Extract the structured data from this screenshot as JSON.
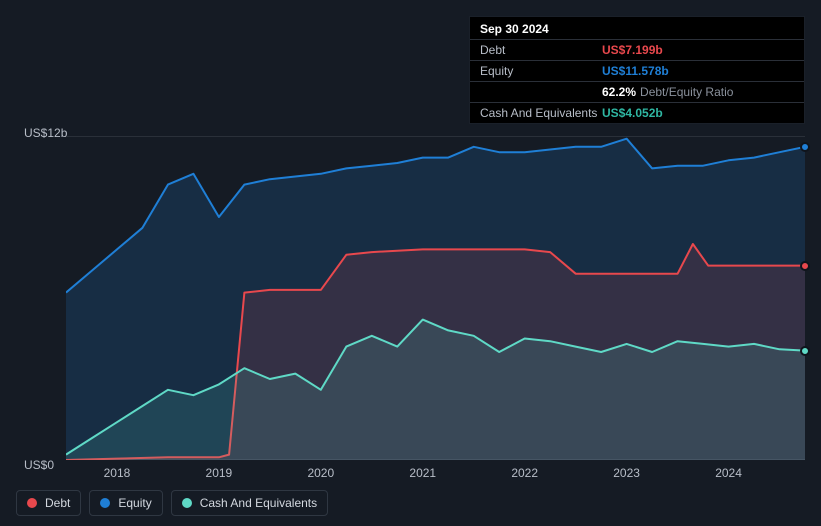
{
  "tooltip": {
    "date": "Sep 30 2024",
    "debt_label": "Debt",
    "debt_value": "US$7.199b",
    "equity_label": "Equity",
    "equity_value": "US$11.578b",
    "ratio_pct": "62.2%",
    "ratio_text": "Debt/Equity Ratio",
    "cash_label": "Cash And Equivalents",
    "cash_value": "US$4.052b"
  },
  "chart": {
    "type": "area",
    "background": "#151b24",
    "plot_bg": "#151b24",
    "grid_color": "#2a3039",
    "y_axis": {
      "min": 0,
      "max": 12,
      "tick_labels": [
        "US$0",
        "US$12b"
      ],
      "label_color": "#b8bec8",
      "label_fontsize": 12
    },
    "x_axis": {
      "min": 2017.5,
      "max": 2024.75,
      "tick_positions": [
        2018,
        2019,
        2020,
        2021,
        2022,
        2023,
        2024
      ],
      "tick_labels": [
        "2018",
        "2019",
        "2020",
        "2021",
        "2022",
        "2023",
        "2024"
      ],
      "label_color": "#b8bec8",
      "label_fontsize": 12
    },
    "series": {
      "equity": {
        "label": "Equity",
        "stroke": "#1f7fd6",
        "fill": "#1f7fd6",
        "fill_opacity": 0.18,
        "stroke_width": 2,
        "x": [
          2017.5,
          2017.75,
          2018.0,
          2018.25,
          2018.5,
          2018.75,
          2019.0,
          2019.25,
          2019.5,
          2019.75,
          2020.0,
          2020.25,
          2020.5,
          2020.75,
          2021.0,
          2021.25,
          2021.5,
          2021.75,
          2022.0,
          2022.25,
          2022.5,
          2022.75,
          2023.0,
          2023.25,
          2023.5,
          2023.75,
          2024.0,
          2024.25,
          2024.5,
          2024.75
        ],
        "y": [
          6.2,
          7.0,
          7.8,
          8.6,
          10.2,
          10.6,
          9.0,
          10.2,
          10.4,
          10.5,
          10.6,
          10.8,
          10.9,
          11.0,
          11.2,
          11.2,
          11.6,
          11.4,
          11.4,
          11.5,
          11.6,
          11.6,
          11.9,
          10.8,
          10.9,
          10.9,
          11.1,
          11.2,
          11.4,
          11.6
        ]
      },
      "debt": {
        "label": "Debt",
        "stroke": "#e8484d",
        "fill": "#e8484d",
        "fill_opacity": 0.14,
        "stroke_width": 2,
        "x": [
          2017.5,
          2018.0,
          2018.5,
          2018.75,
          2019.0,
          2019.1,
          2019.25,
          2019.5,
          2020.0,
          2020.25,
          2020.5,
          2021.0,
          2021.5,
          2022.0,
          2022.25,
          2022.5,
          2023.0,
          2023.5,
          2023.65,
          2023.8,
          2024.0,
          2024.5,
          2024.75
        ],
        "y": [
          0.0,
          0.05,
          0.1,
          0.1,
          0.1,
          0.2,
          6.2,
          6.3,
          6.3,
          7.6,
          7.7,
          7.8,
          7.8,
          7.8,
          7.7,
          6.9,
          6.9,
          6.9,
          8.0,
          7.2,
          7.2,
          7.2,
          7.2
        ]
      },
      "cash": {
        "label": "Cash And Equivalents",
        "stroke": "#5fd9c6",
        "fill": "#5fd9c6",
        "fill_opacity": 0.14,
        "stroke_width": 2,
        "x": [
          2017.5,
          2017.75,
          2018.0,
          2018.25,
          2018.5,
          2018.75,
          2019.0,
          2019.25,
          2019.5,
          2019.75,
          2020.0,
          2020.25,
          2020.5,
          2020.75,
          2021.0,
          2021.25,
          2021.5,
          2021.75,
          2022.0,
          2022.25,
          2022.5,
          2022.75,
          2023.0,
          2023.25,
          2023.5,
          2023.75,
          2024.0,
          2024.25,
          2024.5,
          2024.75
        ],
        "y": [
          0.2,
          0.8,
          1.4,
          2.0,
          2.6,
          2.4,
          2.8,
          3.4,
          3.0,
          3.2,
          2.6,
          4.2,
          4.6,
          4.2,
          5.2,
          4.8,
          4.6,
          4.0,
          4.5,
          4.4,
          4.2,
          4.0,
          4.3,
          4.0,
          4.4,
          4.3,
          4.2,
          4.3,
          4.1,
          4.05
        ]
      }
    },
    "markers": [
      {
        "series": "equity",
        "x": 2024.75,
        "y": 11.6,
        "color": "#1f7fd6"
      },
      {
        "series": "debt",
        "x": 2024.75,
        "y": 7.2,
        "color": "#e8484d"
      },
      {
        "series": "cash",
        "x": 2024.75,
        "y": 4.05,
        "color": "#5fd9c6"
      }
    ],
    "legend": {
      "position": "bottom-left",
      "items": [
        {
          "label": "Debt",
          "color": "#e8484d"
        },
        {
          "label": "Equity",
          "color": "#1f7fd6"
        },
        {
          "label": "Cash And Equivalents",
          "color": "#5fd9c6"
        }
      ],
      "border_color": "#2f3742",
      "text_color": "#d3d8df",
      "fontsize": 12
    }
  }
}
